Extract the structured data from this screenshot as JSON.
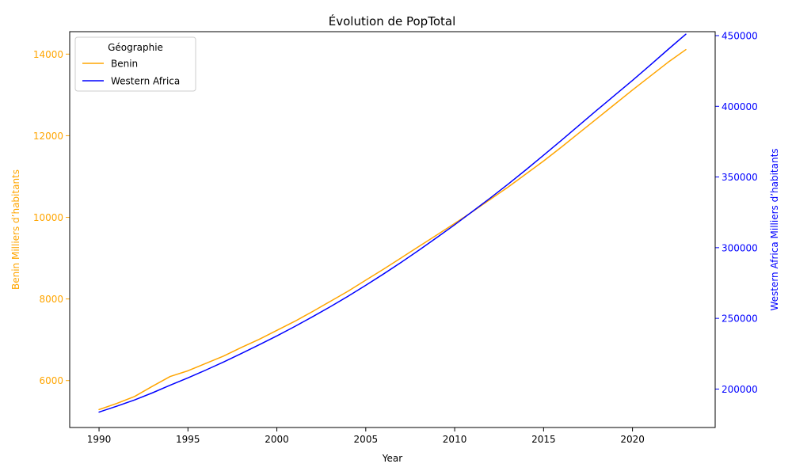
{
  "chart_data": {
    "type": "line",
    "title": "Évolution de PopTotal",
    "xlabel": "Year",
    "ylabel_left": "Benin Milliers d’habitants",
    "ylabel_right": "Western Africa Milliers d’habitants",
    "xlim": [
      1988.35,
      2024.65
    ],
    "ylim_left": [
      4850,
      14550
    ],
    "ylim_right": [
      172800,
      452800
    ],
    "x_ticks": [
      1990,
      1995,
      2000,
      2005,
      2010,
      2015,
      2020
    ],
    "y_ticks_left": [
      6000,
      8000,
      10000,
      12000,
      14000
    ],
    "y_ticks_right": [
      200000,
      250000,
      300000,
      350000,
      400000,
      450000
    ],
    "legend": {
      "title": "Géographie",
      "position": "top-left"
    },
    "grid": false,
    "series": [
      {
        "name": "Benin",
        "axis": "left",
        "color": "#FFA500",
        "x": [
          1990,
          1991,
          1992,
          1993,
          1994,
          1995,
          1996,
          1997,
          1998,
          1999,
          2000,
          2001,
          2002,
          2003,
          2004,
          2005,
          2006,
          2007,
          2008,
          2009,
          2010,
          2011,
          2012,
          2013,
          2014,
          2015,
          2016,
          2017,
          2018,
          2019,
          2020,
          2021,
          2022,
          2023
        ],
        "values": [
          5290,
          5440,
          5610,
          5860,
          6100,
          6240,
          6420,
          6600,
          6810,
          7010,
          7230,
          7450,
          7690,
          7940,
          8190,
          8460,
          8730,
          9010,
          9290,
          9570,
          9850,
          10140,
          10440,
          10740,
          11060,
          11380,
          11720,
          12070,
          12420,
          12770,
          13120,
          13460,
          13800,
          14110
        ]
      },
      {
        "name": "Western Africa",
        "axis": "right",
        "color": "#0000FF",
        "x": [
          1990,
          1991,
          1992,
          1993,
          1994,
          1995,
          1996,
          1997,
          1998,
          1999,
          2000,
          2001,
          2002,
          2003,
          2004,
          2005,
          2006,
          2007,
          2008,
          2009,
          2010,
          2011,
          2012,
          2013,
          2014,
          2015,
          2016,
          2017,
          2018,
          2019,
          2020,
          2021,
          2022,
          2023
        ],
        "values": [
          183700,
          187900,
          192300,
          197300,
          202700,
          207900,
          213400,
          219100,
          225100,
          231300,
          237600,
          244200,
          251100,
          258200,
          265600,
          273400,
          281400,
          289700,
          298300,
          307200,
          316200,
          325600,
          335100,
          344900,
          355000,
          365400,
          375900,
          386600,
          397300,
          407800,
          418300,
          429200,
          440200,
          451000
        ]
      }
    ]
  }
}
